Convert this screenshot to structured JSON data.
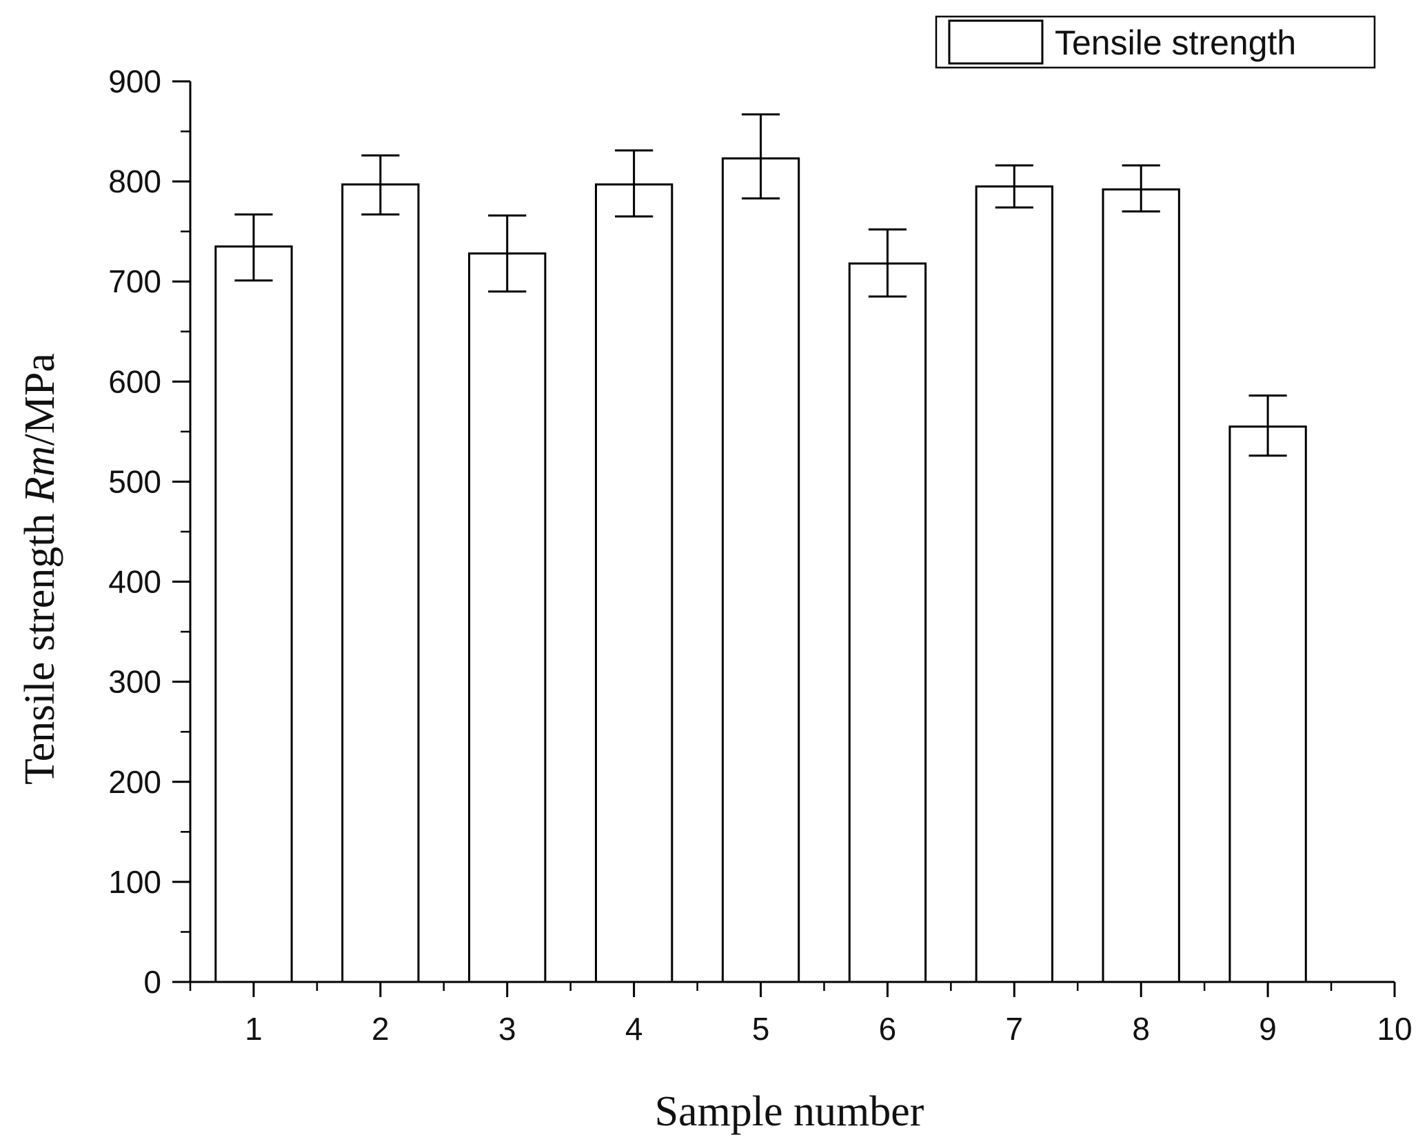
{
  "chart_data": {
    "type": "bar",
    "categories": [
      "1",
      "2",
      "3",
      "4",
      "5",
      "6",
      "7",
      "8",
      "9"
    ],
    "x": [
      1,
      2,
      3,
      4,
      5,
      6,
      7,
      8,
      9
    ],
    "series": [
      {
        "name": "Tensile strength",
        "values": [
          735,
          797,
          728,
          797,
          823,
          718,
          795,
          792,
          555
        ],
        "error_low": [
          701,
          767,
          690,
          765,
          783,
          685,
          774,
          770,
          526
        ],
        "error_high": [
          767,
          826,
          766,
          831,
          867,
          752,
          816,
          816,
          586
        ]
      }
    ],
    "xlabel": "Sample number",
    "ylabel_prefix": "Tensile strength ",
    "ylabel_italic": "Rm",
    "ylabel_suffix": "/MPa",
    "xlim": [
      0.5,
      10
    ],
    "ylim": [
      0,
      900
    ],
    "xticks": [
      1,
      2,
      3,
      4,
      5,
      6,
      7,
      8,
      9,
      10
    ],
    "yticks": [
      0,
      100,
      200,
      300,
      400,
      500,
      600,
      700,
      800,
      900
    ],
    "grid": false,
    "legend_position": "top-right",
    "bar_fill": "#ffffff",
    "bar_stroke": "#000000"
  }
}
